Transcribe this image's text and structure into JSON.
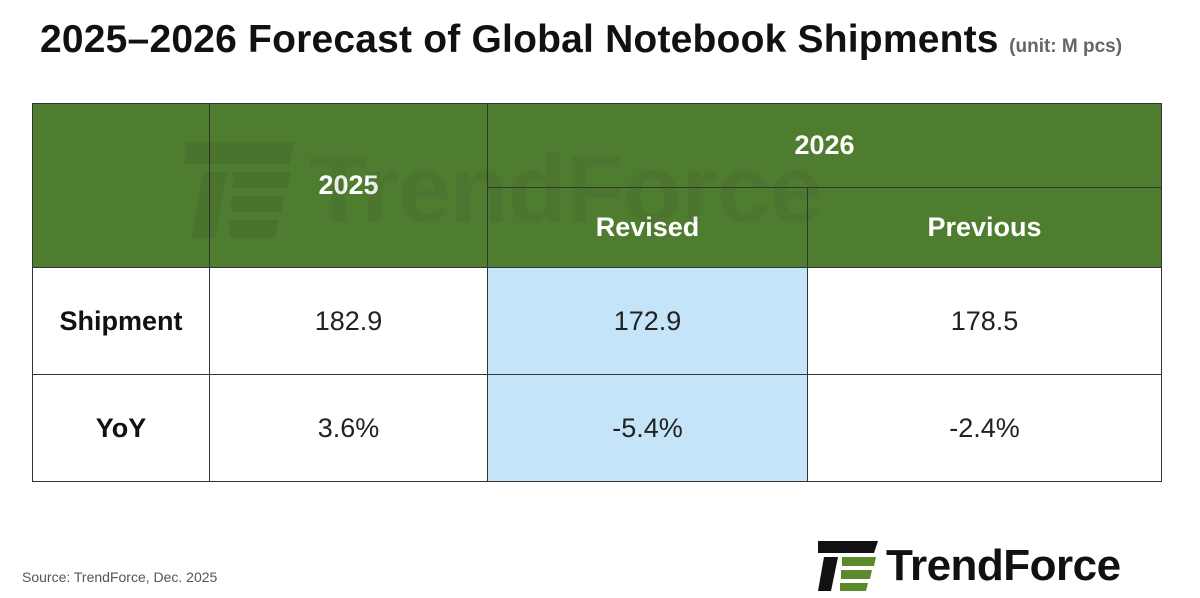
{
  "header": {
    "title": "2025–2026 Forecast of Global Notebook Shipments",
    "unit": "(unit: M pcs)"
  },
  "table": {
    "col_2025": "2025",
    "col_2026": "2026",
    "sub_revised": "Revised",
    "sub_previous": "Previous",
    "rows": [
      {
        "label": "Shipment",
        "y2025": "182.9",
        "revised": "172.9",
        "previous": "178.5"
      },
      {
        "label": "YoY",
        "y2025": "3.6%",
        "revised": "-5.4%",
        "previous": "-2.4%"
      }
    ]
  },
  "chart_data": {
    "type": "table",
    "title": "2025–2026 Forecast of Global Notebook Shipments",
    "unit": "(unit: M pcs)",
    "columns": [
      "2025",
      "2026 Revised",
      "2026 Previous"
    ],
    "rows": [
      {
        "label": "Shipment",
        "values": [
          182.9,
          172.9,
          178.5
        ]
      },
      {
        "label": "YoY",
        "values": [
          "3.6%",
          "-5.4%",
          "-2.4%"
        ]
      }
    ],
    "highlighted_column": "2026 Revised"
  },
  "colors": {
    "header_green": "#4f7d2f",
    "highlight_blue": "#c6e4f7",
    "logo_green": "#5a8a2a"
  },
  "footer": {
    "source": "Source: TrendForce, Dec. 2025",
    "brand": "TrendForce"
  },
  "watermark": {
    "text": "TrendForce"
  }
}
